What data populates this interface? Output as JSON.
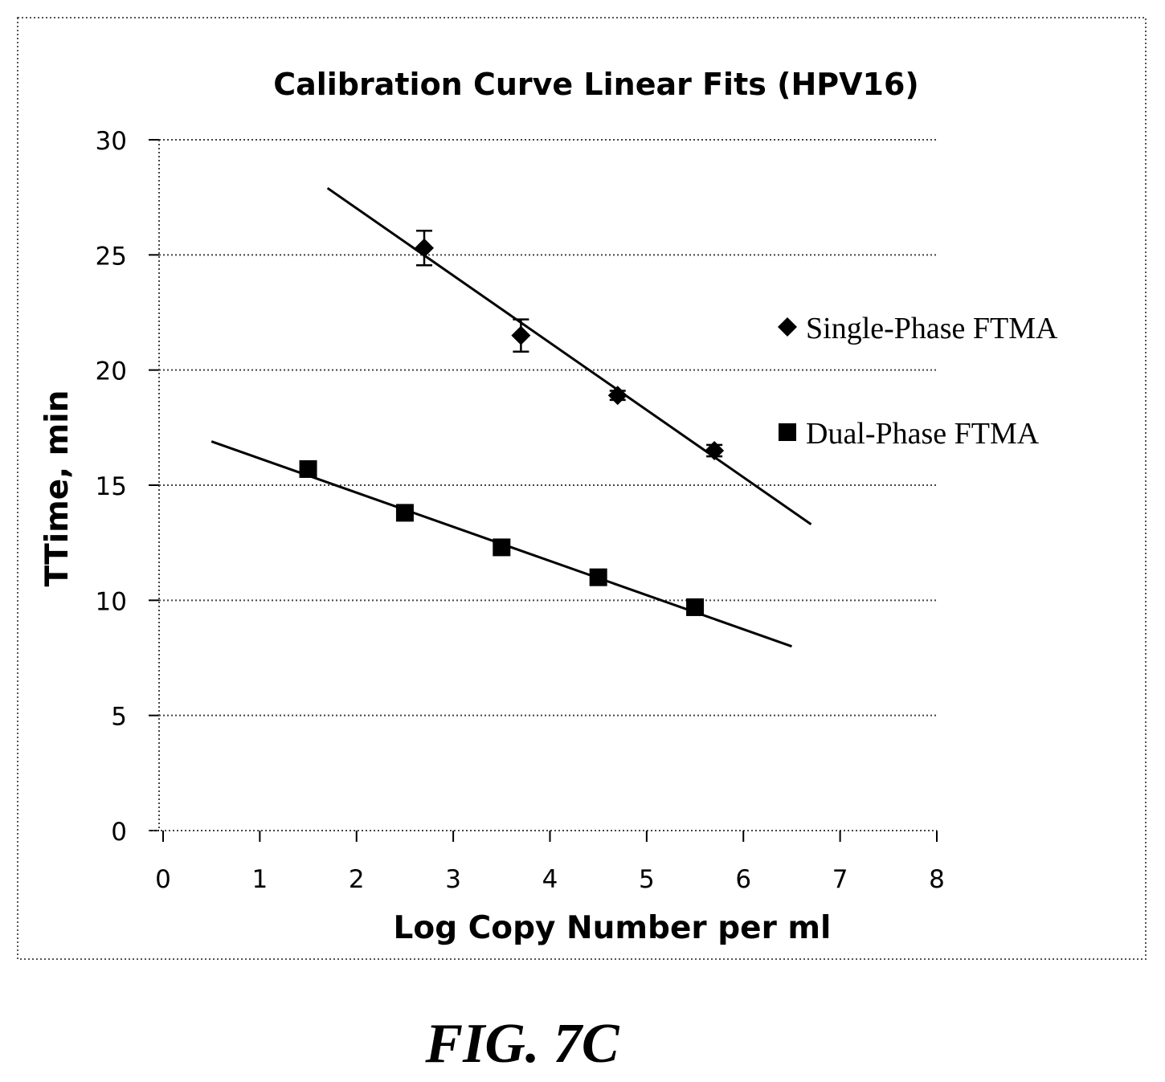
{
  "figure_label": "FIG. 7C",
  "chart_data": {
    "type": "scatter",
    "title": "Calibration Curve Linear Fits (HPV16)",
    "xlabel": "Log Copy Number per ml",
    "ylabel": "TTime, min",
    "xlim": [
      0,
      8
    ],
    "ylim": [
      0,
      30
    ],
    "xticks": [
      "0",
      "1",
      "2",
      "3",
      "4",
      "5",
      "6",
      "7",
      "8"
    ],
    "yticks": [
      "0",
      "5",
      "10",
      "15",
      "20",
      "25",
      "30"
    ],
    "grid": "horizontal dotted",
    "legend_position": "right",
    "series": [
      {
        "name": "Single-Phase FTMA",
        "marker": "diamond",
        "color": "#000000",
        "points": [
          {
            "x": 2.7,
            "y": 25.3,
            "err": 0.75
          },
          {
            "x": 3.7,
            "y": 21.5,
            "err": 0.7
          },
          {
            "x": 4.7,
            "y": 18.9,
            "err": 0.2
          },
          {
            "x": 5.7,
            "y": 16.5,
            "err": 0.25
          }
        ],
        "fit": {
          "x": [
            1.7,
            6.7
          ],
          "y": [
            27.9,
            13.3
          ]
        }
      },
      {
        "name": "Dual-Phase FTMA",
        "marker": "square",
        "color": "#000000",
        "points": [
          {
            "x": 1.5,
            "y": 15.7
          },
          {
            "x": 2.5,
            "y": 13.8
          },
          {
            "x": 3.5,
            "y": 12.3
          },
          {
            "x": 4.5,
            "y": 11.0
          },
          {
            "x": 5.5,
            "y": 9.7
          }
        ],
        "fit": {
          "x": [
            0.5,
            6.5
          ],
          "y": [
            16.9,
            8.0
          ]
        }
      }
    ]
  }
}
